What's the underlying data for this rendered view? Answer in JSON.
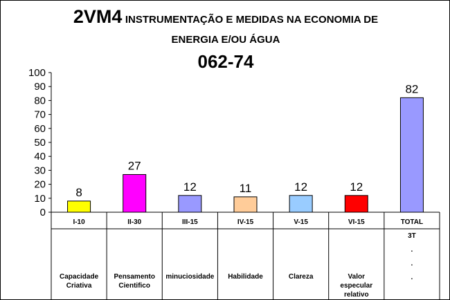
{
  "chart_data": {
    "type": "bar",
    "title_line1_big": "2VM4",
    "title_line1_small": "INSTRUMENTAÇÃO E MEDIDAS NA ECONOMIA DE",
    "title_line2": "ENERGIA E/OU ÁGUA",
    "title_line3": "062-74",
    "ylim": [
      0,
      100
    ],
    "yticks": [
      "0",
      "10",
      "20",
      "30",
      "40",
      "50",
      "60",
      "70",
      "80",
      "90",
      "100"
    ],
    "categories": [
      "I-10",
      "II-30",
      "III-15",
      "IV-15",
      "V-15",
      "VI-15",
      "TOTAL"
    ],
    "values": [
      8,
      27,
      12,
      11,
      12,
      12,
      82
    ],
    "colors": [
      "#ffff00",
      "#ff00ff",
      "#9999ff",
      "#ffcc99",
      "#99ccff",
      "#ff0000",
      "#9999ff"
    ],
    "descriptions": [
      [
        "Capacidade",
        "Criativa"
      ],
      [
        "Pensamento",
        "Cientifico"
      ],
      [
        "minuciosidade"
      ],
      [
        "Habilidade"
      ],
      [
        "Clareza"
      ],
      [
        "Valor",
        "especular",
        "relativo"
      ],
      []
    ],
    "total_notes": [
      "3T",
      ".",
      ".",
      "."
    ],
    "grid": false
  }
}
